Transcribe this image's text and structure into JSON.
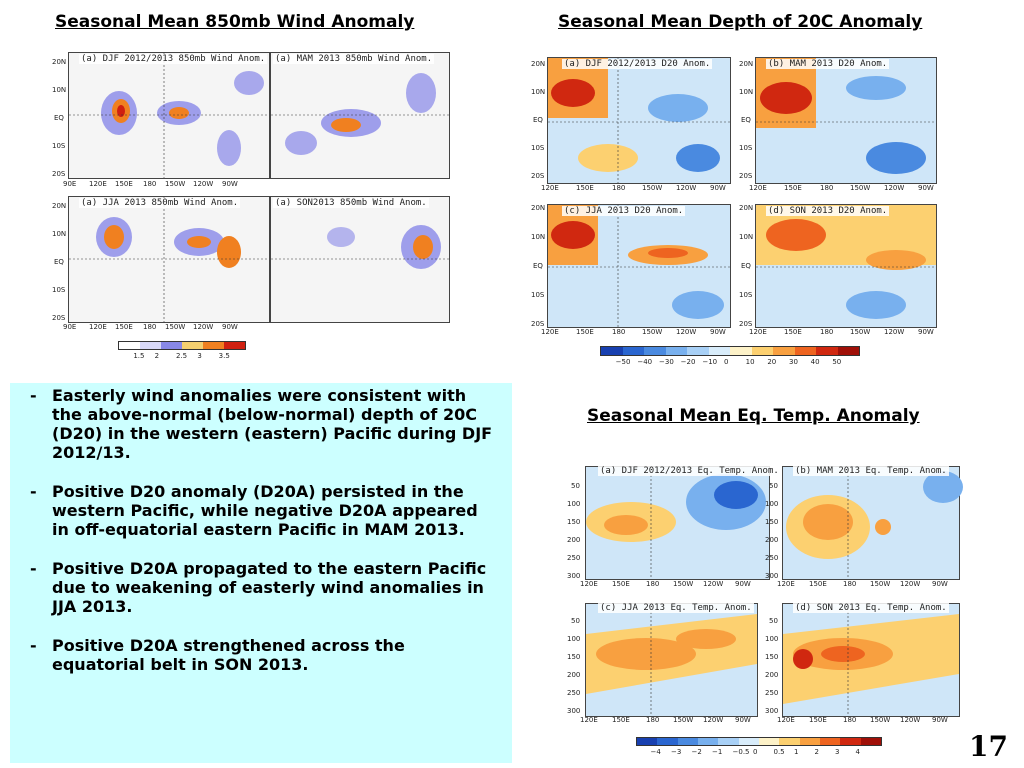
{
  "titles": {
    "wind": "Seasonal Mean 850mb Wind Anomaly",
    "depth": "Seasonal Mean Depth of 20C Anomaly",
    "eqtemp": "Seasonal Mean Eq. Temp. Anomaly"
  },
  "wind_panels": [
    {
      "label": "(a) DJF 2012/2013 850mb Wind Anom."
    },
    {
      "label": "(a) MAM 2013 850mb Wind Anom."
    },
    {
      "label": "(a) JJA 2013 850mb Wind Anom."
    },
    {
      "label": "(a) SON2013 850mb Wind Anom."
    }
  ],
  "depth_panels": [
    {
      "label": "(a) DJF 2012/2013 D20 Anom."
    },
    {
      "label": "(b) MAM 2013 D20 Anom."
    },
    {
      "label": "(c) JJA 2013 D20 Anom."
    },
    {
      "label": "(d) SON 2013 D20 Anom."
    }
  ],
  "eqtemp_panels": [
    {
      "label": "(a) DJF 2012/2013 Eq. Temp. Anom."
    },
    {
      "label": "(b) MAM 2013 Eq. Temp. Anom."
    },
    {
      "label": "(c) JJA 2013 Eq. Temp. Anom."
    },
    {
      "label": "(d) SON 2013 Eq. Temp. Anom."
    }
  ],
  "wind_lat_ticks": [
    "20N",
    "10N",
    "EQ",
    "10S",
    "20S"
  ],
  "wind_lon_ticks": [
    "90E",
    "120E",
    "150E",
    "180",
    "150W",
    "120W",
    "90W"
  ],
  "depth_lat_ticks": [
    "20N",
    "10N",
    "EQ",
    "10S",
    "20S"
  ],
  "depth_lon_ticks": [
    "120E",
    "150E",
    "180",
    "150W",
    "120W",
    "90W"
  ],
  "temp_depth_ticks": [
    "50",
    "100",
    "150",
    "200",
    "250",
    "300"
  ],
  "temp_lon_ticks": [
    "120E",
    "150E",
    "180",
    "150W",
    "120W",
    "90W"
  ],
  "colorbars": {
    "wind": {
      "labels": [
        "1.5",
        "2",
        "2.5",
        "3",
        "3.5"
      ],
      "colors": [
        "#ffffff",
        "#d8d8f8",
        "#8888e8",
        "#f4d070",
        "#f08020",
        "#d02010"
      ]
    },
    "depth": {
      "labels": [
        "−50",
        "−40",
        "−30",
        "−20",
        "−10",
        "0",
        "10",
        "20",
        "30",
        "40",
        "50"
      ],
      "colors": [
        "#1840b0",
        "#2a66d0",
        "#4a8ae0",
        "#78b0ee",
        "#a8d0f6",
        "#d8ecfa",
        "#fdf2c8",
        "#fcd070",
        "#f8a040",
        "#ee6420",
        "#d02810",
        "#a01008"
      ]
    },
    "eqtemp": {
      "labels": [
        "−4",
        "−3",
        "−2",
        "−1",
        "−0.5",
        "0",
        "0.5",
        "1",
        "2",
        "3",
        "4"
      ],
      "colors": [
        "#1840b0",
        "#2a66d0",
        "#4a8ae0",
        "#78b0ee",
        "#a8d0f6",
        "#d8ecfa",
        "#fdf2c8",
        "#fcd070",
        "#f8a040",
        "#ee6420",
        "#d02810",
        "#a01008"
      ]
    }
  },
  "bullets": [
    {
      "dash": "-",
      "text": "Easterly wind anomalies were consistent with the above-normal (below-normal) depth of 20C (D20) in the western (eastern) Pacific during DJF 2012/13."
    },
    {
      "dash": "-",
      "text": "Positive D20 anomaly (D20A) persisted in the western Pacific, while negative D20A appeared in off-equatorial eastern Pacific in MAM 2013."
    },
    {
      "dash": "-",
      "text": "Positive D20A propagated to the eastern Pacific due to weakening of easterly wind anomalies in JJA 2013."
    },
    {
      "dash": "-",
      "text": "Positive D20A strengthened across the equatorial belt in SON 2013."
    }
  ],
  "page_number": "17"
}
